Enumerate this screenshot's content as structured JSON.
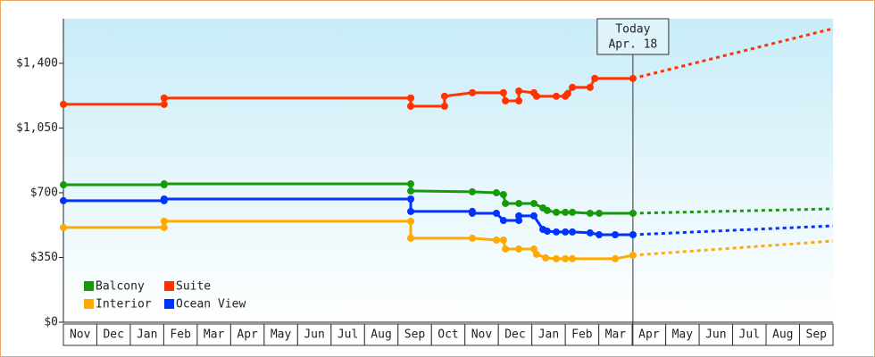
{
  "chart_data": {
    "type": "line",
    "ylim": [
      0,
      1641
    ],
    "yticks": [
      {
        "value": 0,
        "label": "$0"
      },
      {
        "value": 350,
        "label": "$350"
      },
      {
        "value": 700,
        "label": "$700"
      },
      {
        "value": 1050,
        "label": "$1,050"
      },
      {
        "value": 1400,
        "label": "$1,400"
      }
    ],
    "xlim": [
      0,
      23
    ],
    "xticks": [
      {
        "value": 0,
        "label": "Nov"
      },
      {
        "value": 1,
        "label": "Dec"
      },
      {
        "value": 2,
        "label": "Jan"
      },
      {
        "value": 3,
        "label": "Feb"
      },
      {
        "value": 4,
        "label": "Mar"
      },
      {
        "value": 5,
        "label": "Apr"
      },
      {
        "value": 6,
        "label": "May"
      },
      {
        "value": 7,
        "label": "Jun"
      },
      {
        "value": 8,
        "label": "Jul"
      },
      {
        "value": 9,
        "label": "Aug"
      },
      {
        "value": 10,
        "label": "Sep"
      },
      {
        "value": 11,
        "label": "Oct"
      },
      {
        "value": 12,
        "label": "Nov"
      },
      {
        "value": 13,
        "label": "Dec"
      },
      {
        "value": 14,
        "label": "Jan"
      },
      {
        "value": 15,
        "label": "Feb"
      },
      {
        "value": 16,
        "label": "Mar"
      },
      {
        "value": 17,
        "label": "Apr"
      },
      {
        "value": 18,
        "label": "May"
      },
      {
        "value": 19,
        "label": "Jun"
      },
      {
        "value": 20,
        "label": "Jul"
      },
      {
        "value": 21,
        "label": "Aug"
      },
      {
        "value": 22,
        "label": "Sep"
      }
    ],
    "today": {
      "lines": [
        "Today",
        "Apr. 18"
      ],
      "x": 17.02
    },
    "series": [
      {
        "name": "Balcony",
        "color": "#169a0a",
        "x": [
          0,
          3.01,
          3.01,
          10.38,
          10.38,
          12.22,
          12.94,
          13.15,
          13.21,
          13.61,
          14.06,
          14.33,
          14.46,
          14.73,
          15.0,
          15.21,
          15.74,
          16.01,
          17.02
        ],
        "values": [
          743,
          743,
          748,
          748,
          710,
          705,
          700,
          690,
          642,
          642,
          642,
          618,
          604,
          594,
          594,
          594,
          589,
          589,
          589
        ],
        "forecast_x": [
          17.02,
          23
        ],
        "forecast": [
          589,
          613
        ]
      },
      {
        "name": "Suite",
        "color": "#ff3300",
        "x": [
          0,
          3.01,
          3.01,
          10.38,
          10.38,
          11.39,
          11.39,
          12.22,
          13.15,
          13.21,
          13.61,
          13.61,
          14.06,
          14.14,
          14.73,
          15.0,
          15.07,
          15.21,
          15.74,
          15.88,
          17.02
        ],
        "values": [
          1178,
          1178,
          1212,
          1212,
          1168,
          1168,
          1222,
          1241,
          1241,
          1197,
          1197,
          1250,
          1241,
          1222,
          1222,
          1222,
          1236,
          1270,
          1270,
          1318,
          1318
        ],
        "forecast_x": [
          17.02,
          23
        ],
        "forecast": [
          1318,
          1588
        ]
      },
      {
        "name": "Interior",
        "color": "#ffaa00",
        "x": [
          0,
          3.01,
          3.01,
          10.38,
          10.38,
          12.22,
          12.94,
          13.15,
          13.21,
          13.61,
          14.06,
          14.14,
          14.41,
          14.73,
          15.0,
          15.21,
          16.49,
          17.02
        ],
        "values": [
          512,
          512,
          546,
          546,
          454,
          454,
          444,
          444,
          396,
          396,
          396,
          367,
          348,
          343,
          343,
          343,
          343,
          362
        ],
        "forecast_x": [
          17.02,
          23
        ],
        "forecast": [
          362,
          439
        ]
      },
      {
        "name": "Ocean View",
        "color": "#0033ff",
        "x": [
          0,
          3.01,
          3.01,
          10.38,
          10.38,
          12.22,
          12.22,
          12.94,
          13.15,
          13.61,
          13.61,
          14.06,
          14.33,
          14.46,
          14.73,
          15.0,
          15.21,
          15.74,
          16.01,
          16.49,
          17.02
        ],
        "values": [
          657,
          657,
          666,
          666,
          599,
          599,
          589,
          589,
          550,
          550,
          575,
          575,
          502,
          492,
          488,
          488,
          488,
          483,
          473,
          473,
          473
        ],
        "forecast_x": [
          17.02,
          23
        ],
        "forecast": [
          473,
          521
        ]
      }
    ]
  }
}
